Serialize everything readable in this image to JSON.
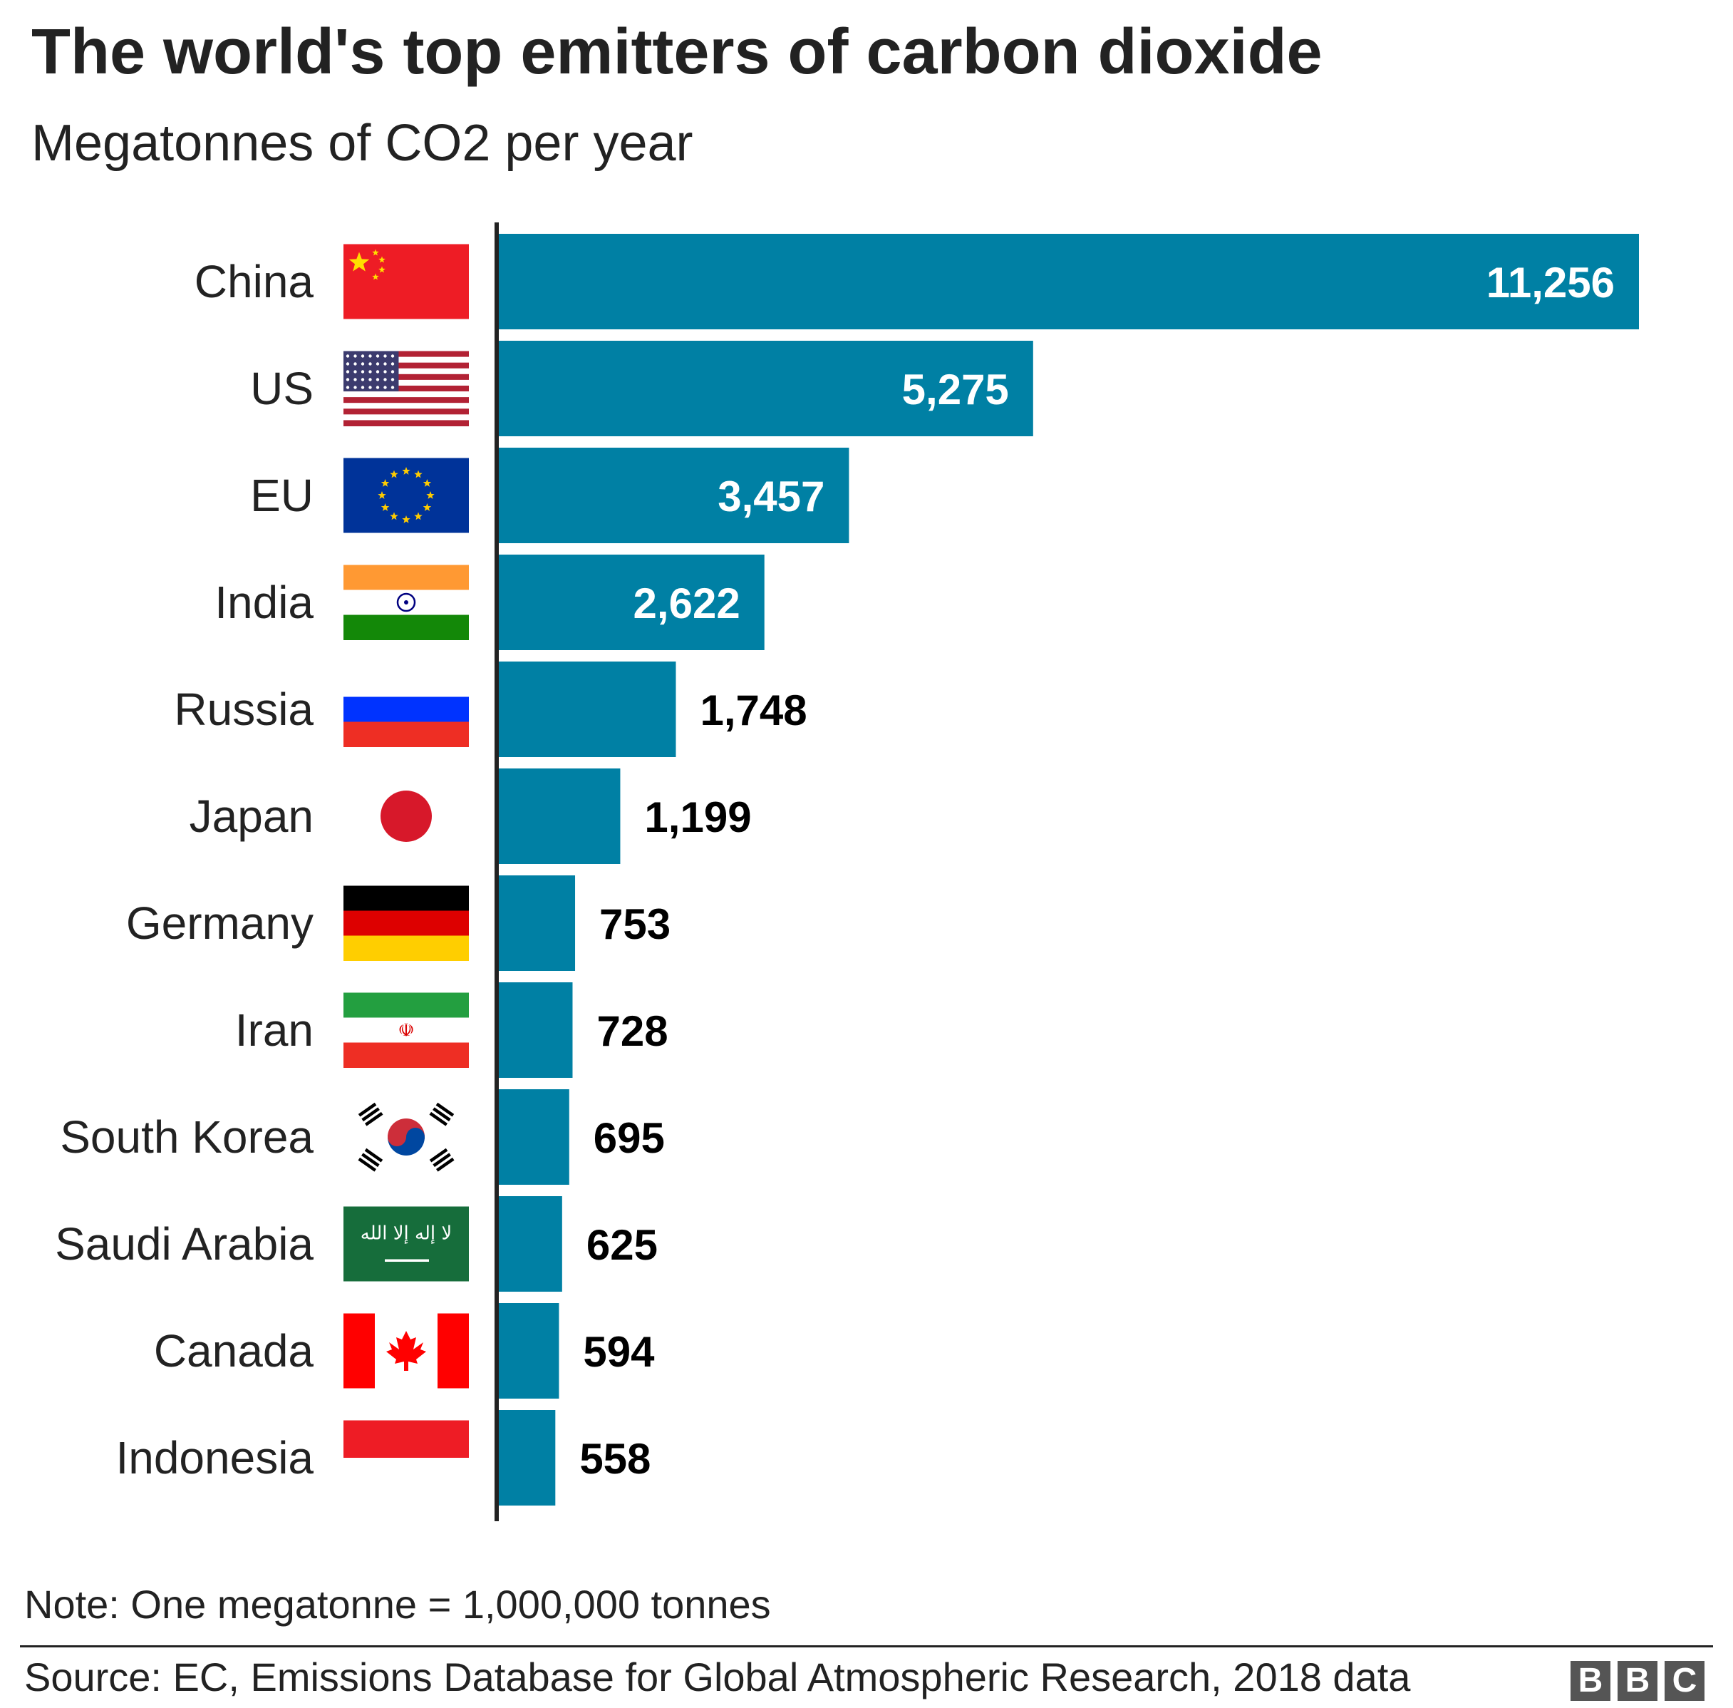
{
  "title": "The world's top emitters of carbon dioxide",
  "subtitle": "Megatonnes of CO2 per year",
  "note": "Note: One megatonne = 1,000,000 tonnes",
  "source": "Source: EC, Emissions Database for Global Atmospheric Research, 2018 data",
  "logo": [
    "B",
    "B",
    "C"
  ],
  "colors": {
    "bar": "#0080a4",
    "axis": "#222222",
    "label_inside": "#ffffff",
    "label_outside": "#000000"
  },
  "chart_data": {
    "type": "bar",
    "orientation": "horizontal",
    "categories": [
      "China",
      "US",
      "EU",
      "India",
      "Russia",
      "Japan",
      "Germany",
      "Iran",
      "South Korea",
      "Saudi Arabia",
      "Canada",
      "Indonesia"
    ],
    "values": [
      11256,
      5275,
      3457,
      2622,
      1748,
      1199,
      753,
      728,
      695,
      625,
      594,
      558
    ],
    "value_labels": [
      "11,256",
      "5,275",
      "3,457",
      "2,622",
      "1,748",
      "1,199",
      "753",
      "728",
      "695",
      "625",
      "594",
      "558"
    ],
    "flags": [
      "china-flag",
      "us-flag",
      "eu-flag",
      "india-flag",
      "russia-flag",
      "japan-flag",
      "germany-flag",
      "iran-flag",
      "south-korea-flag",
      "saudi-arabia-flag",
      "canada-flag",
      "indonesia-flag"
    ],
    "title": "The world's top emitters of carbon dioxide",
    "subtitle": "Megatonnes of CO2 per year",
    "xlim": [
      0,
      11256
    ],
    "grid": false,
    "legend": "none"
  }
}
